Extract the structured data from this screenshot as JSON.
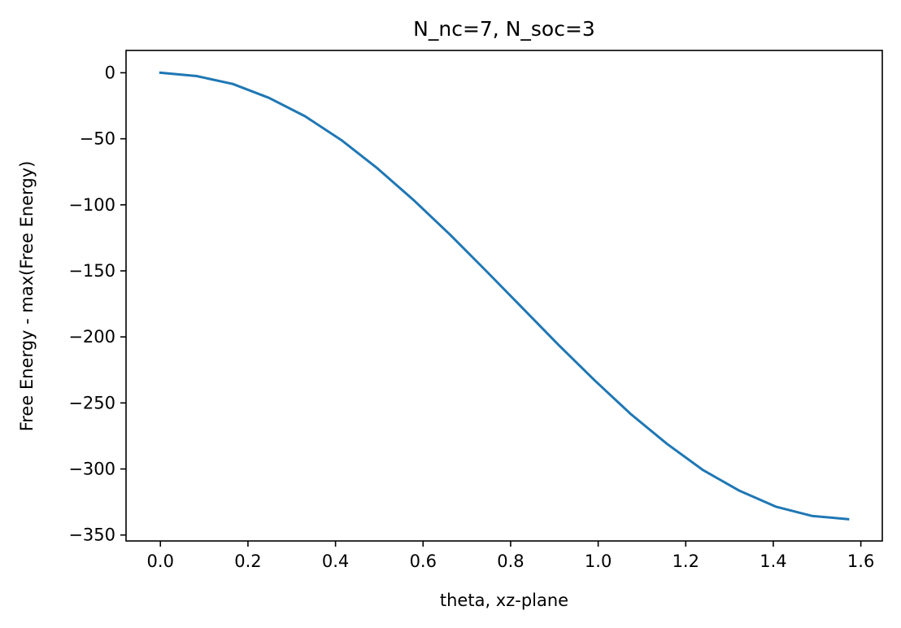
{
  "chart_data": {
    "type": "line",
    "title": "N_nc=7, N_soc=3",
    "xlabel": "theta, xz-plane",
    "ylabel": "Free Energy - max(Free Energy)",
    "xlim": [
      -0.0785,
      1.649
    ],
    "ylim": [
      -354.5,
      16.9
    ],
    "grid": false,
    "x_ticks": [
      0.0,
      0.2,
      0.4,
      0.6,
      0.8,
      1.0,
      1.2,
      1.4,
      1.6
    ],
    "x_tick_labels": [
      "0.0",
      "0.2",
      "0.4",
      "0.6",
      "0.8",
      "1.0",
      "1.2",
      "1.4",
      "1.6"
    ],
    "y_ticks": [
      0,
      -50,
      -100,
      -150,
      -200,
      -250,
      -300,
      -350
    ],
    "y_tick_labels": [
      "0",
      "−50",
      "−100",
      "−150",
      "−200",
      "−250",
      "−300",
      "−350"
    ],
    "series": [
      {
        "color": "#1f77b4",
        "x": [
          0.0,
          0.0827,
          0.1653,
          0.248,
          0.3307,
          0.4134,
          0.496,
          0.5787,
          0.6614,
          0.744,
          0.8267,
          0.9094,
          0.9921,
          1.0747,
          1.1574,
          1.2401,
          1.3228,
          1.4054,
          1.4881,
          1.5708
        ],
        "y": [
          0,
          -2.5,
          -8.5,
          -19,
          -33,
          -51,
          -72.5,
          -96.5,
          -122.5,
          -150,
          -178,
          -206,
          -233,
          -258.5,
          -281,
          -301,
          -316.5,
          -328.5,
          -335.5,
          -338
        ]
      }
    ]
  }
}
